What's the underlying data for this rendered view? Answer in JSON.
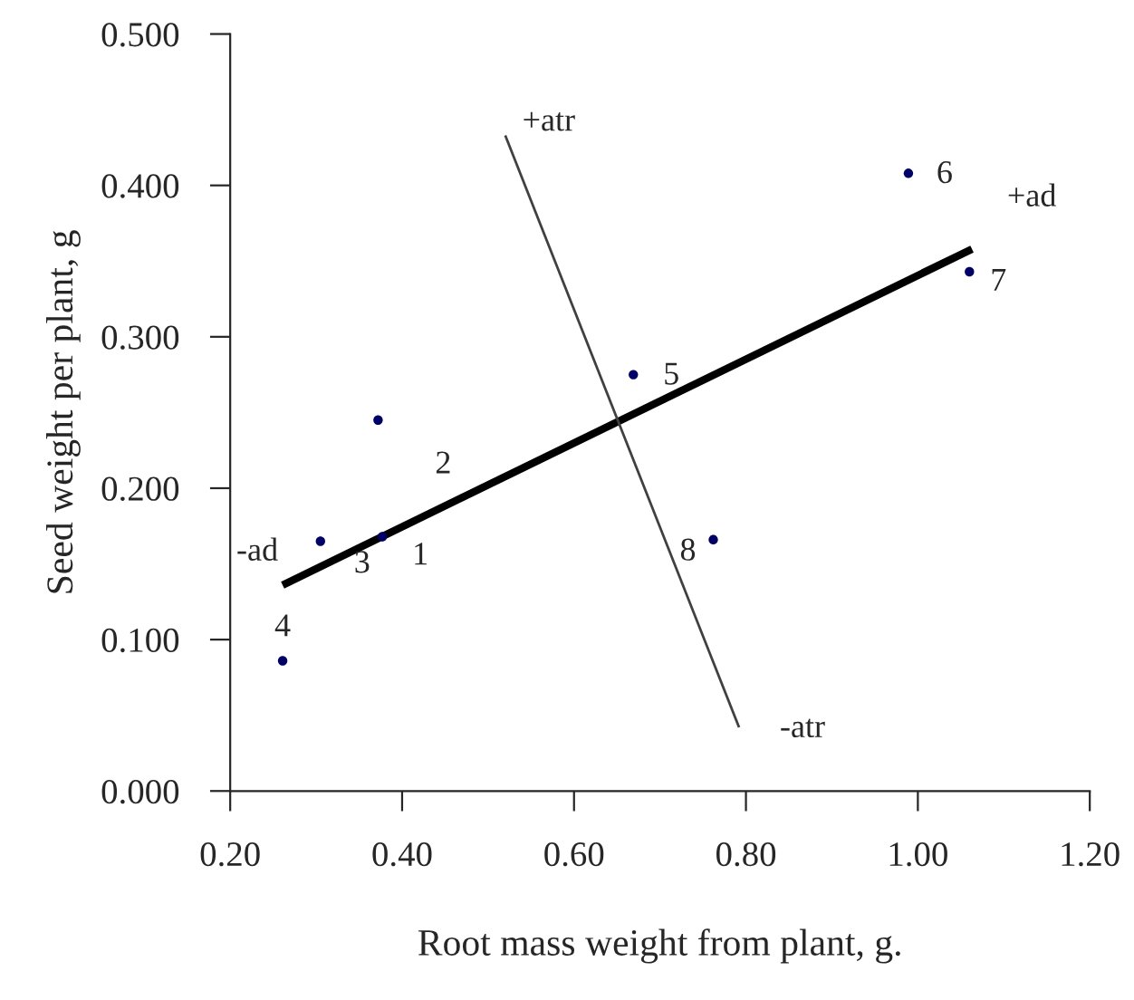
{
  "chart_data": {
    "type": "scatter",
    "xlabel": "Root mass weight from plant, g.",
    "ylabel": "Seed weight per plant, g",
    "xlim": [
      0.2,
      1.2
    ],
    "xticks": [
      {
        "value": 0.2,
        "label": "0.20"
      },
      {
        "value": 0.4,
        "label": "0.40"
      },
      {
        "value": 0.6,
        "label": "0.60"
      },
      {
        "value": 0.8,
        "label": "0.80"
      },
      {
        "value": 1.0,
        "label": "1.00"
      },
      {
        "value": 1.2,
        "label": "1.20"
      }
    ],
    "ylim": [
      0,
      0.5
    ],
    "yticks": [
      {
        "value": 0,
        "label": "0.000"
      },
      {
        "value": 0.1,
        "label": "0.100"
      },
      {
        "value": 0.2,
        "label": "0.200"
      },
      {
        "value": 0.3,
        "label": "0.300"
      },
      {
        "value": 0.4,
        "label": "0.400"
      },
      {
        "value": 0.5,
        "label": "0.500"
      }
    ],
    "series": [
      {
        "color": "#000066",
        "marker": "circle",
        "x": [
          0.377,
          0.372,
          0.305,
          0.261,
          0.669,
          0.989,
          1.06,
          0.762
        ],
        "values": [
          0.168,
          0.245,
          0.165,
          0.086,
          0.275,
          0.408,
          0.343,
          0.166
        ]
      },
      {
        "type": "line",
        "color": "#000000",
        "x": [
          0.261,
          1.063
        ],
        "values": [
          0.136,
          0.358
        ]
      },
      {
        "type": "line",
        "color": "#404040",
        "x": [
          0.52,
          0.792
        ],
        "values": [
          0.433,
          0.042
        ]
      }
    ],
    "annotations": [
      {
        "text": "1",
        "x": 0.377,
        "y": 0.168
      },
      {
        "text": "2",
        "x": 0.372,
        "y": 0.245
      },
      {
        "text": "3",
        "x": 0.305,
        "y": 0.165
      },
      {
        "text": "4",
        "x": 0.261,
        "y": 0.086
      },
      {
        "text": "5",
        "x": 0.669,
        "y": 0.275
      },
      {
        "text": "6",
        "x": 0.989,
        "y": 0.408
      },
      {
        "text": "7",
        "x": 1.06,
        "y": 0.343
      },
      {
        "text": "8",
        "x": 0.762,
        "y": 0.166
      },
      {
        "text": "+atr",
        "x": 0.52,
        "y": 0.433
      },
      {
        "text": "-atr",
        "x": 0.792,
        "y": 0.042
      },
      {
        "text": "+ad",
        "x": 1.063,
        "y": 0.358
      },
      {
        "text": "-ad",
        "x": 0.261,
        "y": 0.136
      }
    ]
  }
}
